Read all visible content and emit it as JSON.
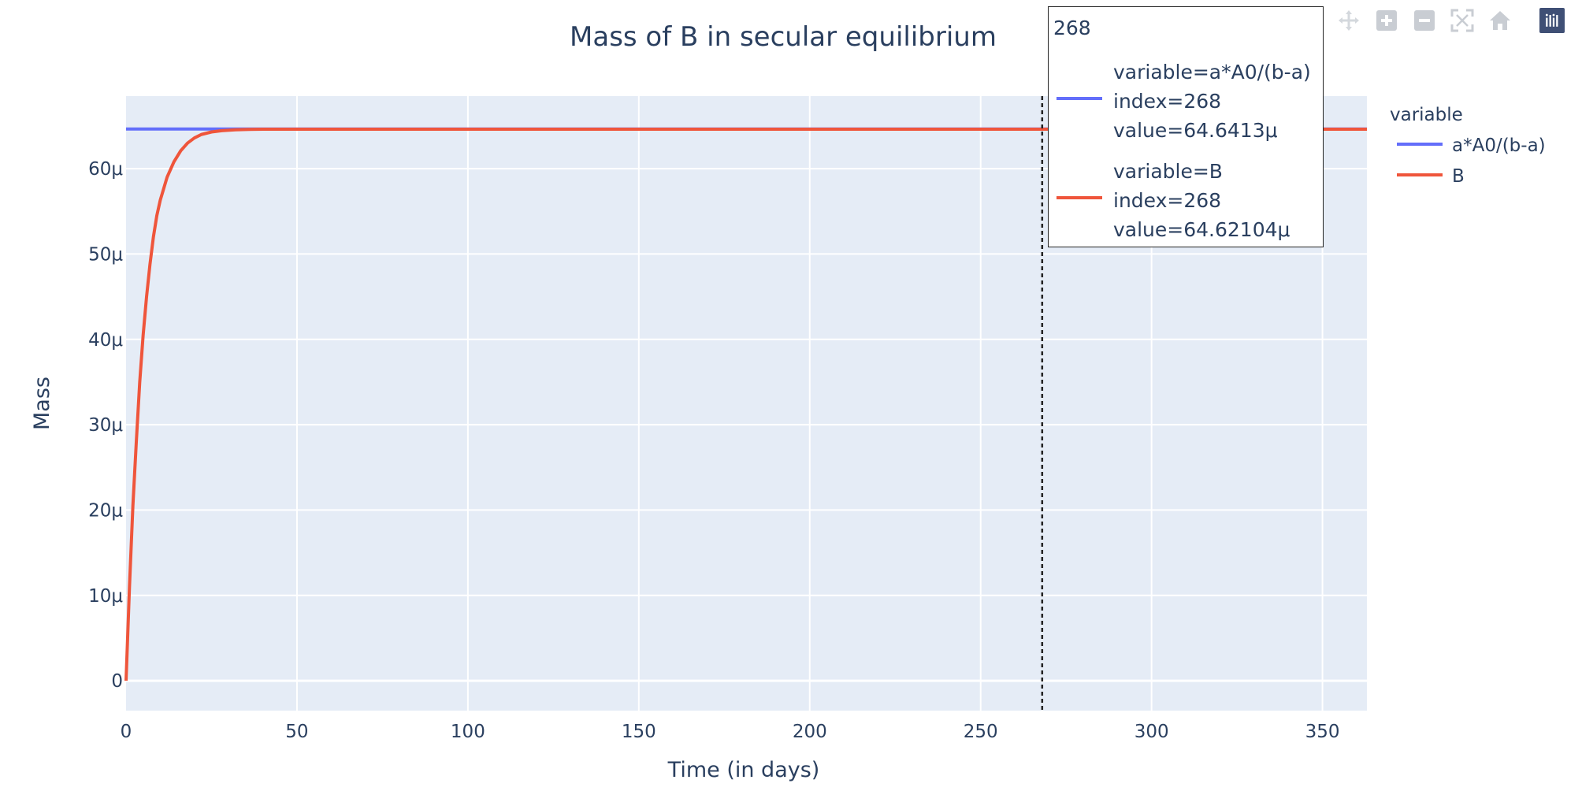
{
  "chart_data": {
    "type": "line",
    "title": "Mass of B in secular equilibrium",
    "xlabel": "Time (in days)",
    "ylabel": "Mass",
    "xlim": [
      0,
      363
    ],
    "ylim": [
      -3.5e-06,
      6.85e-05
    ],
    "x_ticks": [
      0,
      50,
      100,
      150,
      200,
      250,
      300,
      350
    ],
    "x_tick_labels": [
      "0",
      "50",
      "100",
      "150",
      "200",
      "250",
      "300",
      "350"
    ],
    "y_ticks": [
      0,
      1e-05,
      2e-05,
      3e-05,
      4e-05,
      5e-05,
      6e-05
    ],
    "y_tick_labels": [
      "0",
      "10μ",
      "20μ",
      "30μ",
      "40μ",
      "50μ",
      "60μ"
    ],
    "grid": true,
    "legend": {
      "title": "variable",
      "position": "right"
    },
    "series": [
      {
        "name": "a*A0/(b-a)",
        "color": "#636efa",
        "x": [
          0,
          363
        ],
        "y": [
          6.46413e-05,
          6.46413e-05
        ]
      },
      {
        "name": "B",
        "color": "#ef553b",
        "x": [
          0,
          1,
          2,
          3,
          4,
          5,
          6,
          7,
          8,
          9,
          10,
          12,
          14,
          16,
          18,
          20,
          22,
          25,
          28,
          32,
          36,
          40,
          50,
          60,
          80,
          100,
          150,
          200,
          250,
          268,
          300,
          363
        ],
        "y": [
          0,
          1.1e-05,
          2.05e-05,
          2.8e-05,
          3.5e-05,
          4.05e-05,
          4.5e-05,
          4.88e-05,
          5.2e-05,
          5.45e-05,
          5.63e-05,
          5.9e-05,
          6.08e-05,
          6.21e-05,
          6.3e-05,
          6.36e-05,
          6.4e-05,
          6.43e-05,
          6.445e-05,
          6.455e-05,
          6.46e-05,
          6.462e-05,
          6.4625e-05,
          6.4621e-05,
          6.4621e-05,
          6.4621e-05,
          6.4621e-05,
          6.4621e-05,
          6.4621e-05,
          6.462104e-05,
          6.4621e-05,
          6.4621e-05
        ]
      }
    ],
    "hover": {
      "x": 268,
      "header": "268",
      "entries": [
        {
          "lines": [
            "variable=a*A0/(b-a)",
            "index=268",
            "value=64.6413μ"
          ],
          "color": "#636efa"
        },
        {
          "lines": [
            "variable=B",
            "index=268",
            "value=64.62104μ"
          ],
          "color": "#ef553b"
        }
      ]
    }
  },
  "colors": {
    "plot_bg": "#e5ecf6",
    "grid": "#ffffff",
    "text": "#2a3f5f",
    "spike": "#222222"
  },
  "modebar": {
    "icons": [
      "pan-icon",
      "zoom-in-icon",
      "zoom-out-icon",
      "autoscale-icon",
      "reset-axes-icon",
      "plotly-logo-icon"
    ]
  }
}
